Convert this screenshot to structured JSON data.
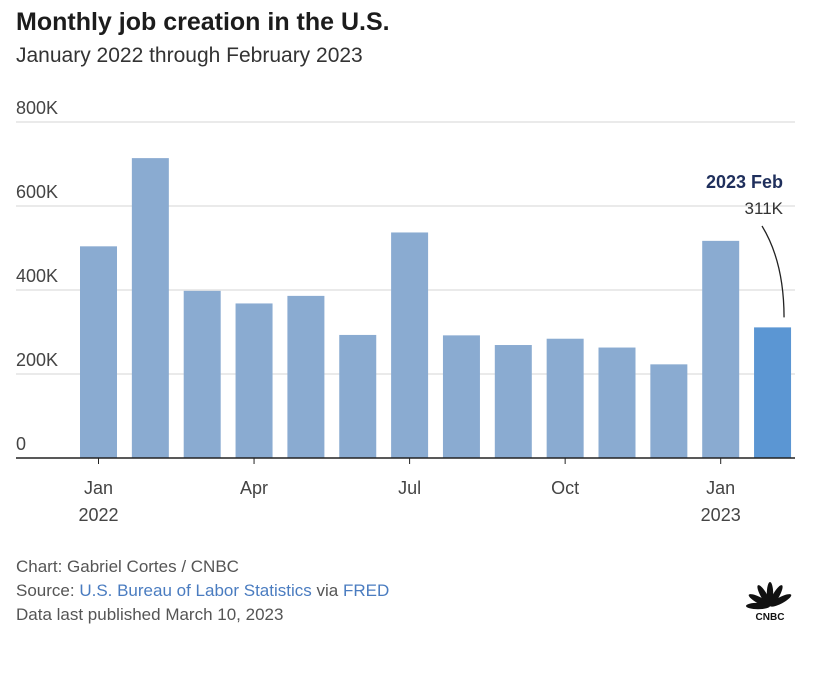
{
  "title": "Monthly job creation in the U.S.",
  "subtitle": "January 2022 through February 2023",
  "colors": {
    "bar": "#8aabd1",
    "highlight": "#5b96d3",
    "annotation_title": "#1f2f5c",
    "link": "#4a7cc0"
  },
  "chart_data": {
    "type": "bar",
    "title": "Monthly job creation in the U.S.",
    "subtitle": "January 2022 through February 2023",
    "categories": [
      "Jan 2022",
      "Feb 2022",
      "Mar 2022",
      "Apr 2022",
      "May 2022",
      "Jun 2022",
      "Jul 2022",
      "Aug 2022",
      "Sep 2022",
      "Oct 2022",
      "Nov 2022",
      "Dec 2022",
      "Jan 2023",
      "Feb 2023"
    ],
    "values": [
      504,
      714,
      398,
      368,
      386,
      293,
      537,
      292,
      269,
      284,
      263,
      223,
      517,
      311
    ],
    "unit": "K",
    "ylim": [
      0,
      800
    ],
    "yticks": [
      0,
      200,
      400,
      600,
      800
    ],
    "ytick_labels": [
      "0",
      "200K",
      "400K",
      "600K",
      "800K"
    ],
    "xtick_labels": [
      {
        "index": 0,
        "line1": "Jan",
        "line2": "2022"
      },
      {
        "index": 3,
        "line1": "Apr",
        "line2": ""
      },
      {
        "index": 6,
        "line1": "Jul",
        "line2": ""
      },
      {
        "index": 9,
        "line1": "Oct",
        "line2": ""
      },
      {
        "index": 12,
        "line1": "Jan",
        "line2": "2023"
      }
    ],
    "highlight_index": 13,
    "annotation": {
      "title": "2023 Feb",
      "value": "311K"
    },
    "grid": true,
    "xlabel": "",
    "ylabel": ""
  },
  "footer": {
    "credit": "Chart: Gabriel Cortes / CNBC",
    "source_prefix": "Source: ",
    "source_link1": "U.S. Bureau of Labor Statistics",
    "source_middle": " via ",
    "source_link2": "FRED",
    "published": "Data last published March 10, 2023"
  },
  "logo": {
    "text": "CNBC",
    "icon": "peacock-logo-icon"
  }
}
